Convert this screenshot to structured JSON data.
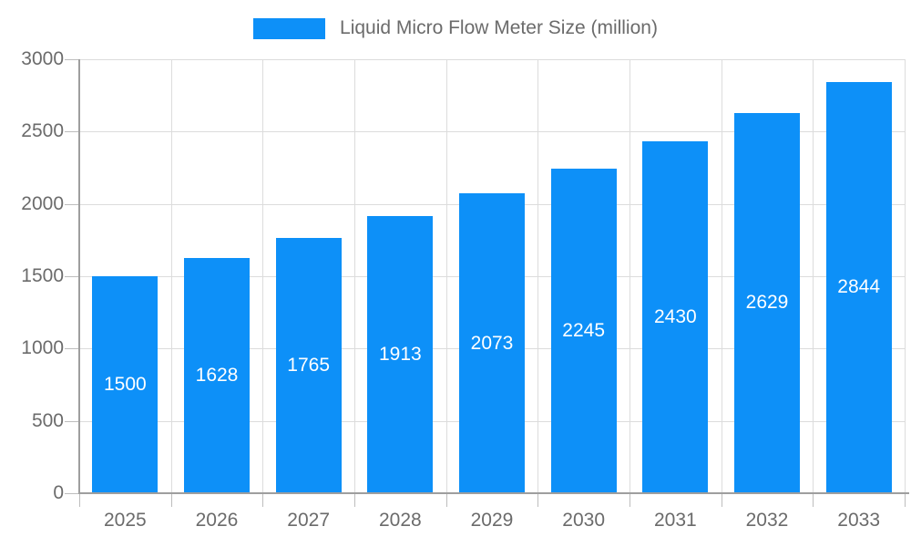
{
  "legend": {
    "label": "Liquid Micro Flow Meter Size (million)"
  },
  "chart_data": {
    "type": "bar",
    "title": "Liquid Micro Flow Meter Size (million)",
    "categories": [
      "2025",
      "2026",
      "2027",
      "2028",
      "2029",
      "2030",
      "2031",
      "2032",
      "2033"
    ],
    "values": [
      1500,
      1628,
      1765,
      1913,
      2073,
      2245,
      2430,
      2629,
      2844
    ],
    "xlabel": "",
    "ylabel": "",
    "ylim": [
      0,
      3000
    ],
    "yticks": [
      0,
      500,
      1000,
      1500,
      2000,
      2500,
      3000
    ],
    "grid": true,
    "legend_position": "top-center",
    "bar_color": "#0D90F8",
    "value_label_color": "#ffffff",
    "axis_text_color": "#6b6b6b",
    "grid_color": "#dcdcdc",
    "axis_line_color": "#9e9e9e"
  }
}
